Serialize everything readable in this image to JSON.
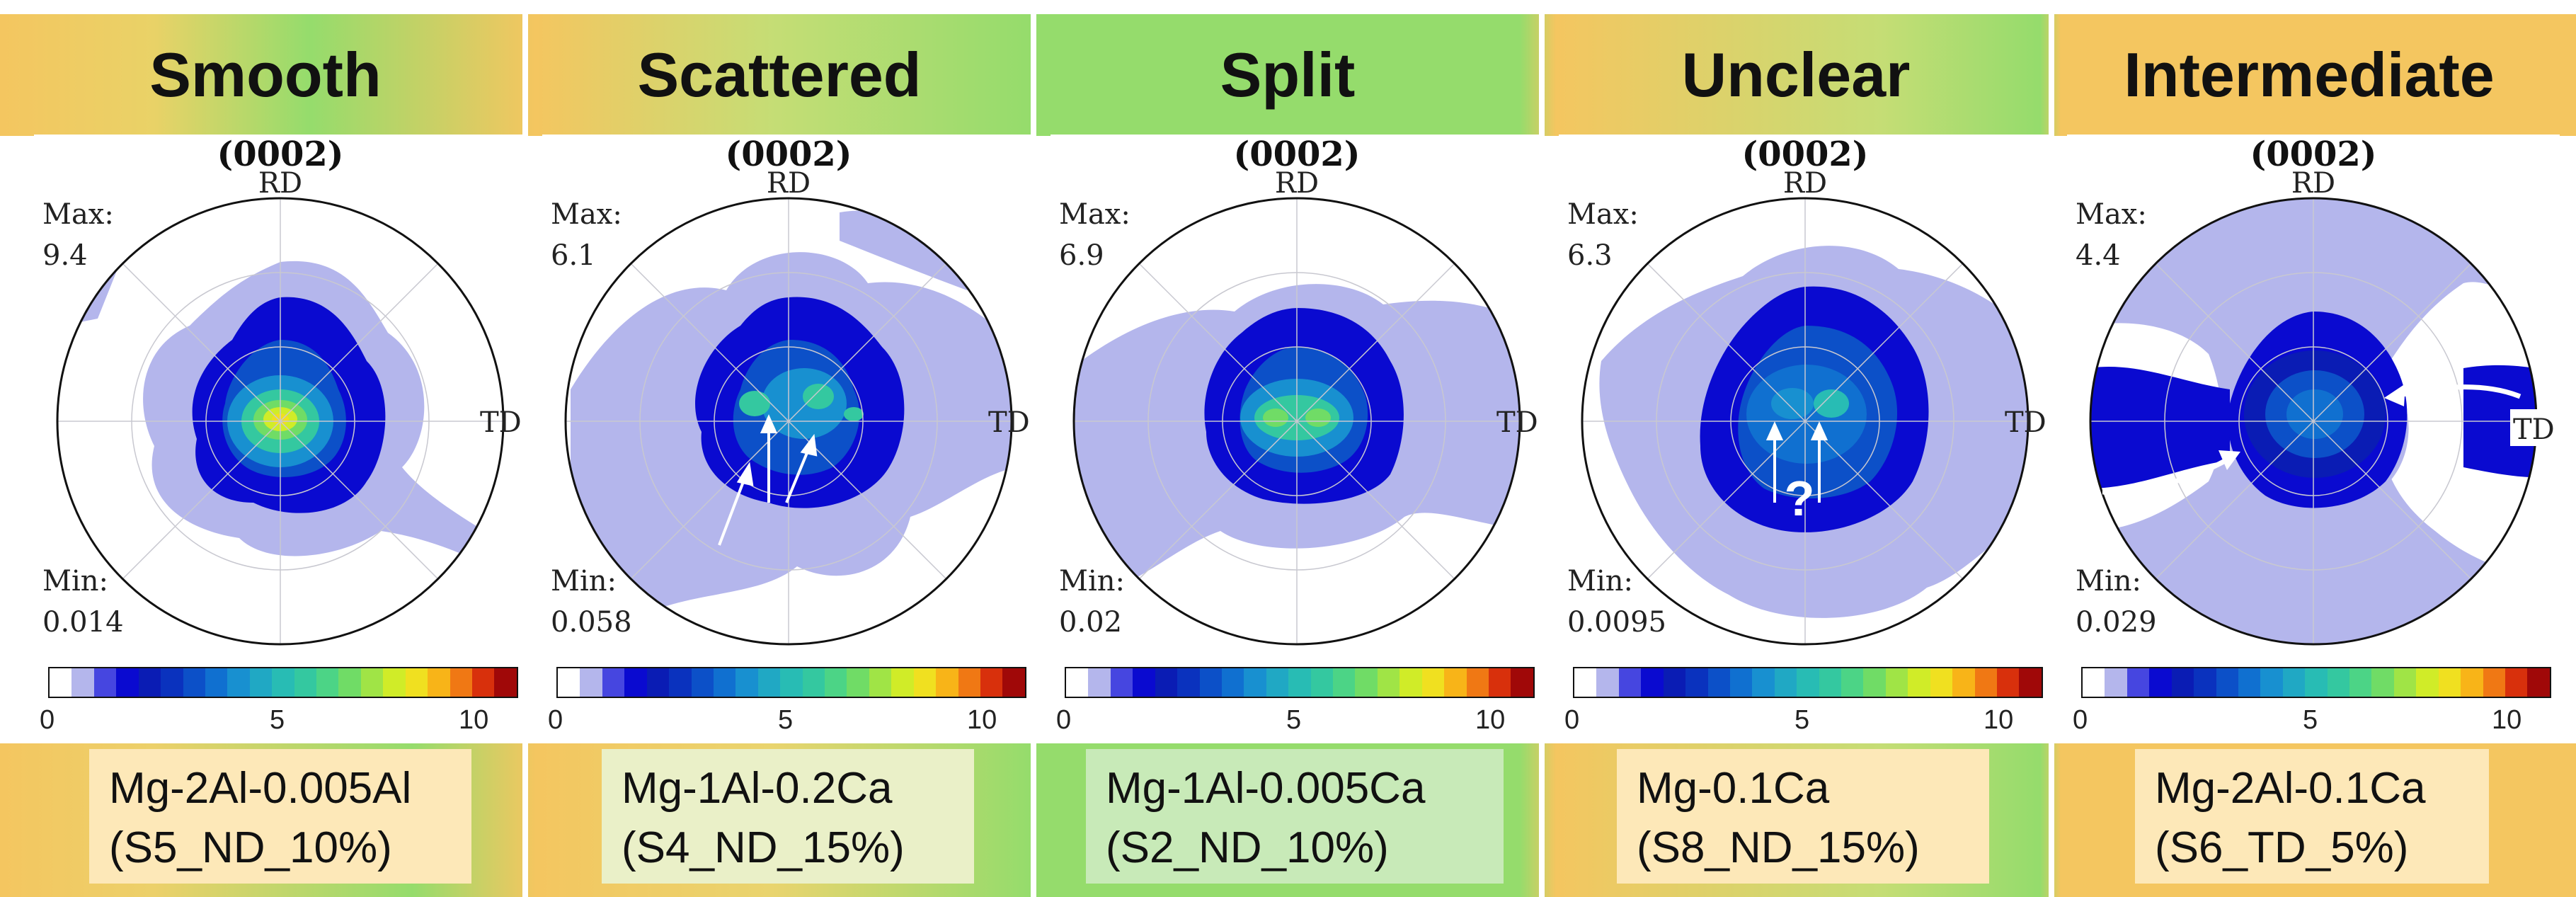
{
  "panels": [
    {
      "title": "Smooth",
      "pf_title": "(0002)",
      "rd": "RD",
      "td": "TD",
      "max_label": "Max:",
      "max_value": "9.4",
      "min_label": "Min:",
      "min_value": "0.014",
      "caption_line1": "Mg-2Al-0.005Al",
      "caption_line2": "(S5_ND_10%)"
    },
    {
      "title": "Scattered",
      "pf_title": "(0002)",
      "rd": "RD",
      "td": "TD",
      "max_label": "Max:",
      "max_value": "6.1",
      "min_label": "Min:",
      "min_value": "0.058",
      "caption_line1": "Mg-1Al-0.2Ca",
      "caption_line2": "(S4_ND_15%)"
    },
    {
      "title": "Split",
      "pf_title": "(0002)",
      "rd": "RD",
      "td": "TD",
      "max_label": "Max:",
      "max_value": "6.9",
      "min_label": "Min:",
      "min_value": "0.02",
      "caption_line1": "Mg-1Al-0.005Ca",
      "caption_line2": "(S2_ND_10%)"
    },
    {
      "title": "Unclear",
      "pf_title": "(0002)",
      "rd": "RD",
      "td": "TD",
      "max_label": "Max:",
      "max_value": "6.3",
      "min_label": "Min:",
      "min_value": "0.0095",
      "caption_line1": "Mg-0.1Ca",
      "caption_line2": "(S8_ND_15%)",
      "annotation": "?"
    },
    {
      "title": "Intermediate",
      "pf_title": "(0002)",
      "rd": "RD",
      "td": "TD",
      "max_label": "Max:",
      "max_value": "4.4",
      "min_label": "Min:",
      "min_value": "0.029",
      "caption_line1": "Mg-2Al-0.1Ca",
      "caption_line2": "(S6_TD_5%)"
    }
  ],
  "colorbar": {
    "ticks": [
      "0",
      "5",
      "10"
    ],
    "colors": [
      "#ffffff",
      "#b4b6ec",
      "#4646e0",
      "#0a0ad0",
      "#0a1cb4",
      "#0a32be",
      "#0c50c8",
      "#1070d0",
      "#1890d0",
      "#20a8c4",
      "#28bcb4",
      "#34c8a0",
      "#4cd486",
      "#70dc66",
      "#a0e446",
      "#d0ec28",
      "#f0e020",
      "#f8b418",
      "#f07814",
      "#d8300c",
      "#a00808"
    ]
  },
  "captions_bg": [
    "#fde8b8",
    "#eaf0c8",
    "#c8eab8",
    "#fde8b8",
    "#fde8b8"
  ]
}
